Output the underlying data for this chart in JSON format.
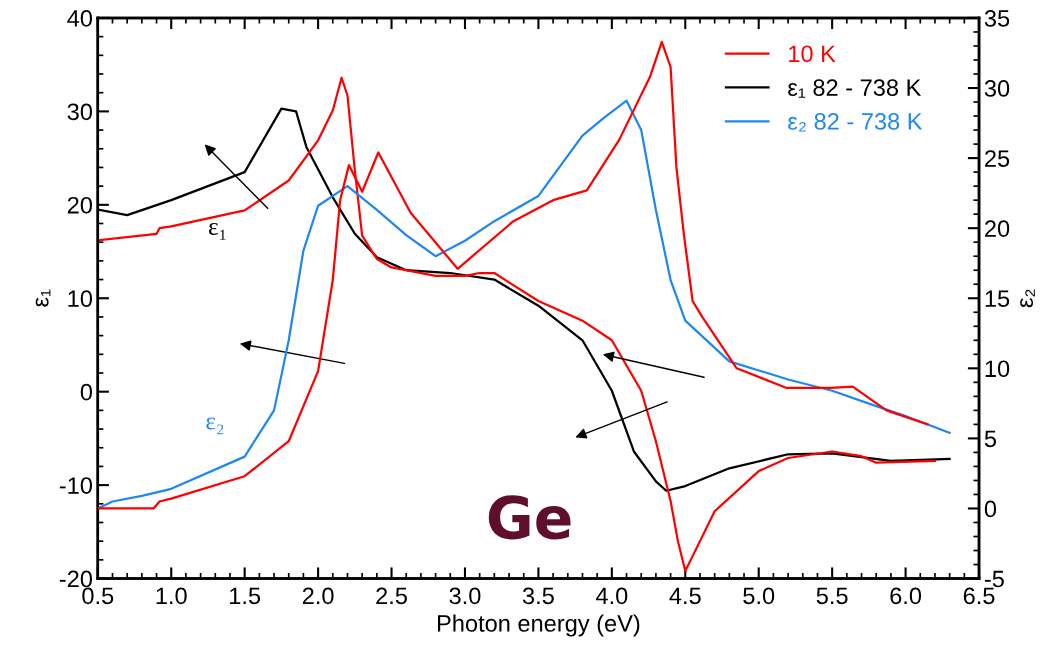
{
  "chart_data": {
    "type": "line",
    "xlabel": "Photon energy (eV)",
    "ylabel": "ε₁",
    "y2label": "ε₂",
    "xlim": [
      0.5,
      6.5
    ],
    "xticks": [
      0.5,
      {
        "value": 1,
        "label": "1.0"
      },
      1.5,
      {
        "value": 2,
        "label": "2.0"
      },
      2.5,
      {
        "value": 3,
        "label": "3.0"
      },
      3.5,
      {
        "value": 4,
        "label": "4.0"
      },
      4.5,
      {
        "value": 5,
        "label": "5.0"
      },
      5.5,
      {
        "value": 6,
        "label": "6.0"
      },
      6.5
    ],
    "ylim": [
      -20,
      40
    ],
    "yticks": [
      -20,
      -10,
      0,
      10,
      20,
      30,
      40
    ],
    "y2lim": [
      -5,
      35
    ],
    "y2ticks": [
      -5,
      0,
      5,
      10,
      15,
      20,
      25,
      30,
      35
    ],
    "legend": "top right",
    "grid": false,
    "marker": "none",
    "line_style": "solid",
    "annotations": [
      "ε₁",
      "ε₂",
      "Ge"
    ],
    "series": [
      {
        "name": "ε₁ 82 - 738 K",
        "color": "#000000",
        "x": [
          0.5,
          0.7,
          1.0,
          1.5,
          1.75,
          1.85,
          1.92,
          2.1,
          2.25,
          2.4,
          2.6,
          2.9,
          3.2,
          3.5,
          3.8,
          4.0,
          4.15,
          4.3,
          4.37,
          4.5,
          4.8,
          5.2,
          5.5,
          5.9,
          6.3
        ],
        "values": [
          19.5,
          18.9,
          20.5,
          23.5,
          30.3,
          30.0,
          26.2,
          20.8,
          16.9,
          14.4,
          13.0,
          12.7,
          12.0,
          9.2,
          5.5,
          0.1,
          -6.4,
          -9.6,
          -10.6,
          -10.1,
          -8.2,
          -6.7,
          -6.6,
          -7.4,
          -7.2
        ]
      },
      {
        "name": "ε₂ 82 - 738 K",
        "color": "#1e88f0",
        "axis": "y2",
        "x": [
          0.5,
          0.6,
          0.8,
          1.0,
          1.5,
          1.7,
          1.8,
          1.9,
          2.0,
          2.1,
          2.2,
          2.4,
          2.6,
          2.8,
          3.0,
          3.2,
          3.5,
          3.8,
          3.95,
          4.1,
          4.2,
          4.3,
          4.4,
          4.5,
          4.8,
          5.2,
          5.5,
          5.8,
          6.0,
          6.3
        ],
        "values": [
          0,
          0.5,
          0.9,
          1.4,
          3.7,
          7.0,
          12.0,
          18.4,
          21.6,
          22.3,
          23.0,
          21.3,
          19.5,
          18.0,
          19.1,
          20.5,
          22.3,
          26.6,
          27.9,
          29.1,
          27.0,
          21.3,
          16.3,
          13.4,
          10.5,
          9.2,
          8.4,
          7.3,
          6.6,
          5.4
        ]
      },
      {
        "name": "10 K",
        "color": "#ff0000",
        "x": [
          0.5,
          0.9,
          0.92,
          1.0,
          1.5,
          1.8,
          2.0,
          2.1,
          2.16,
          2.2,
          2.25,
          2.3,
          2.4,
          2.5,
          2.8,
          3.0,
          3.1,
          3.2,
          3.5,
          3.8,
          4.0,
          4.2,
          4.3,
          4.4,
          4.45,
          4.5,
          4.55,
          4.7,
          5.0,
          5.2,
          5.5,
          5.7,
          5.8,
          6.2
        ],
        "values": [
          16.2,
          16.9,
          17.5,
          17.7,
          19.4,
          22.6,
          26.9,
          30.1,
          33.6,
          31.7,
          23.7,
          16.7,
          14.2,
          13.3,
          12.4,
          12.4,
          12.7,
          12.7,
          9.7,
          7.6,
          5.5,
          0.1,
          -5.3,
          -11.7,
          -16.0,
          -19.2,
          -17.6,
          -12.8,
          -8.5,
          -7.1,
          -6.4,
          -6.9,
          -7.6,
          -7.4
        ]
      },
      {
        "color": "#ff0000",
        "axis": "y2",
        "x": [
          0.5,
          0.88,
          0.92,
          1.0,
          1.5,
          1.8,
          2.0,
          2.1,
          2.15,
          2.21,
          2.3,
          2.41,
          2.63,
          2.95,
          3.33,
          3.6,
          3.83,
          4.05,
          4.26,
          4.34,
          4.4,
          4.44,
          4.49,
          4.55,
          4.62,
          4.85,
          5.19,
          5.49,
          5.64,
          5.87,
          6.15
        ],
        "values": [
          0,
          0,
          0.5,
          0.7,
          2.3,
          4.8,
          9.8,
          16.3,
          22.0,
          24.5,
          22.6,
          25.4,
          21.1,
          17.1,
          20.5,
          22.0,
          22.7,
          26.3,
          30.8,
          33.3,
          31.5,
          24.3,
          19.6,
          14.8,
          13.6,
          10.0,
          8.6,
          8.6,
          8.7,
          7.0,
          6.0
        ]
      }
    ]
  }
}
